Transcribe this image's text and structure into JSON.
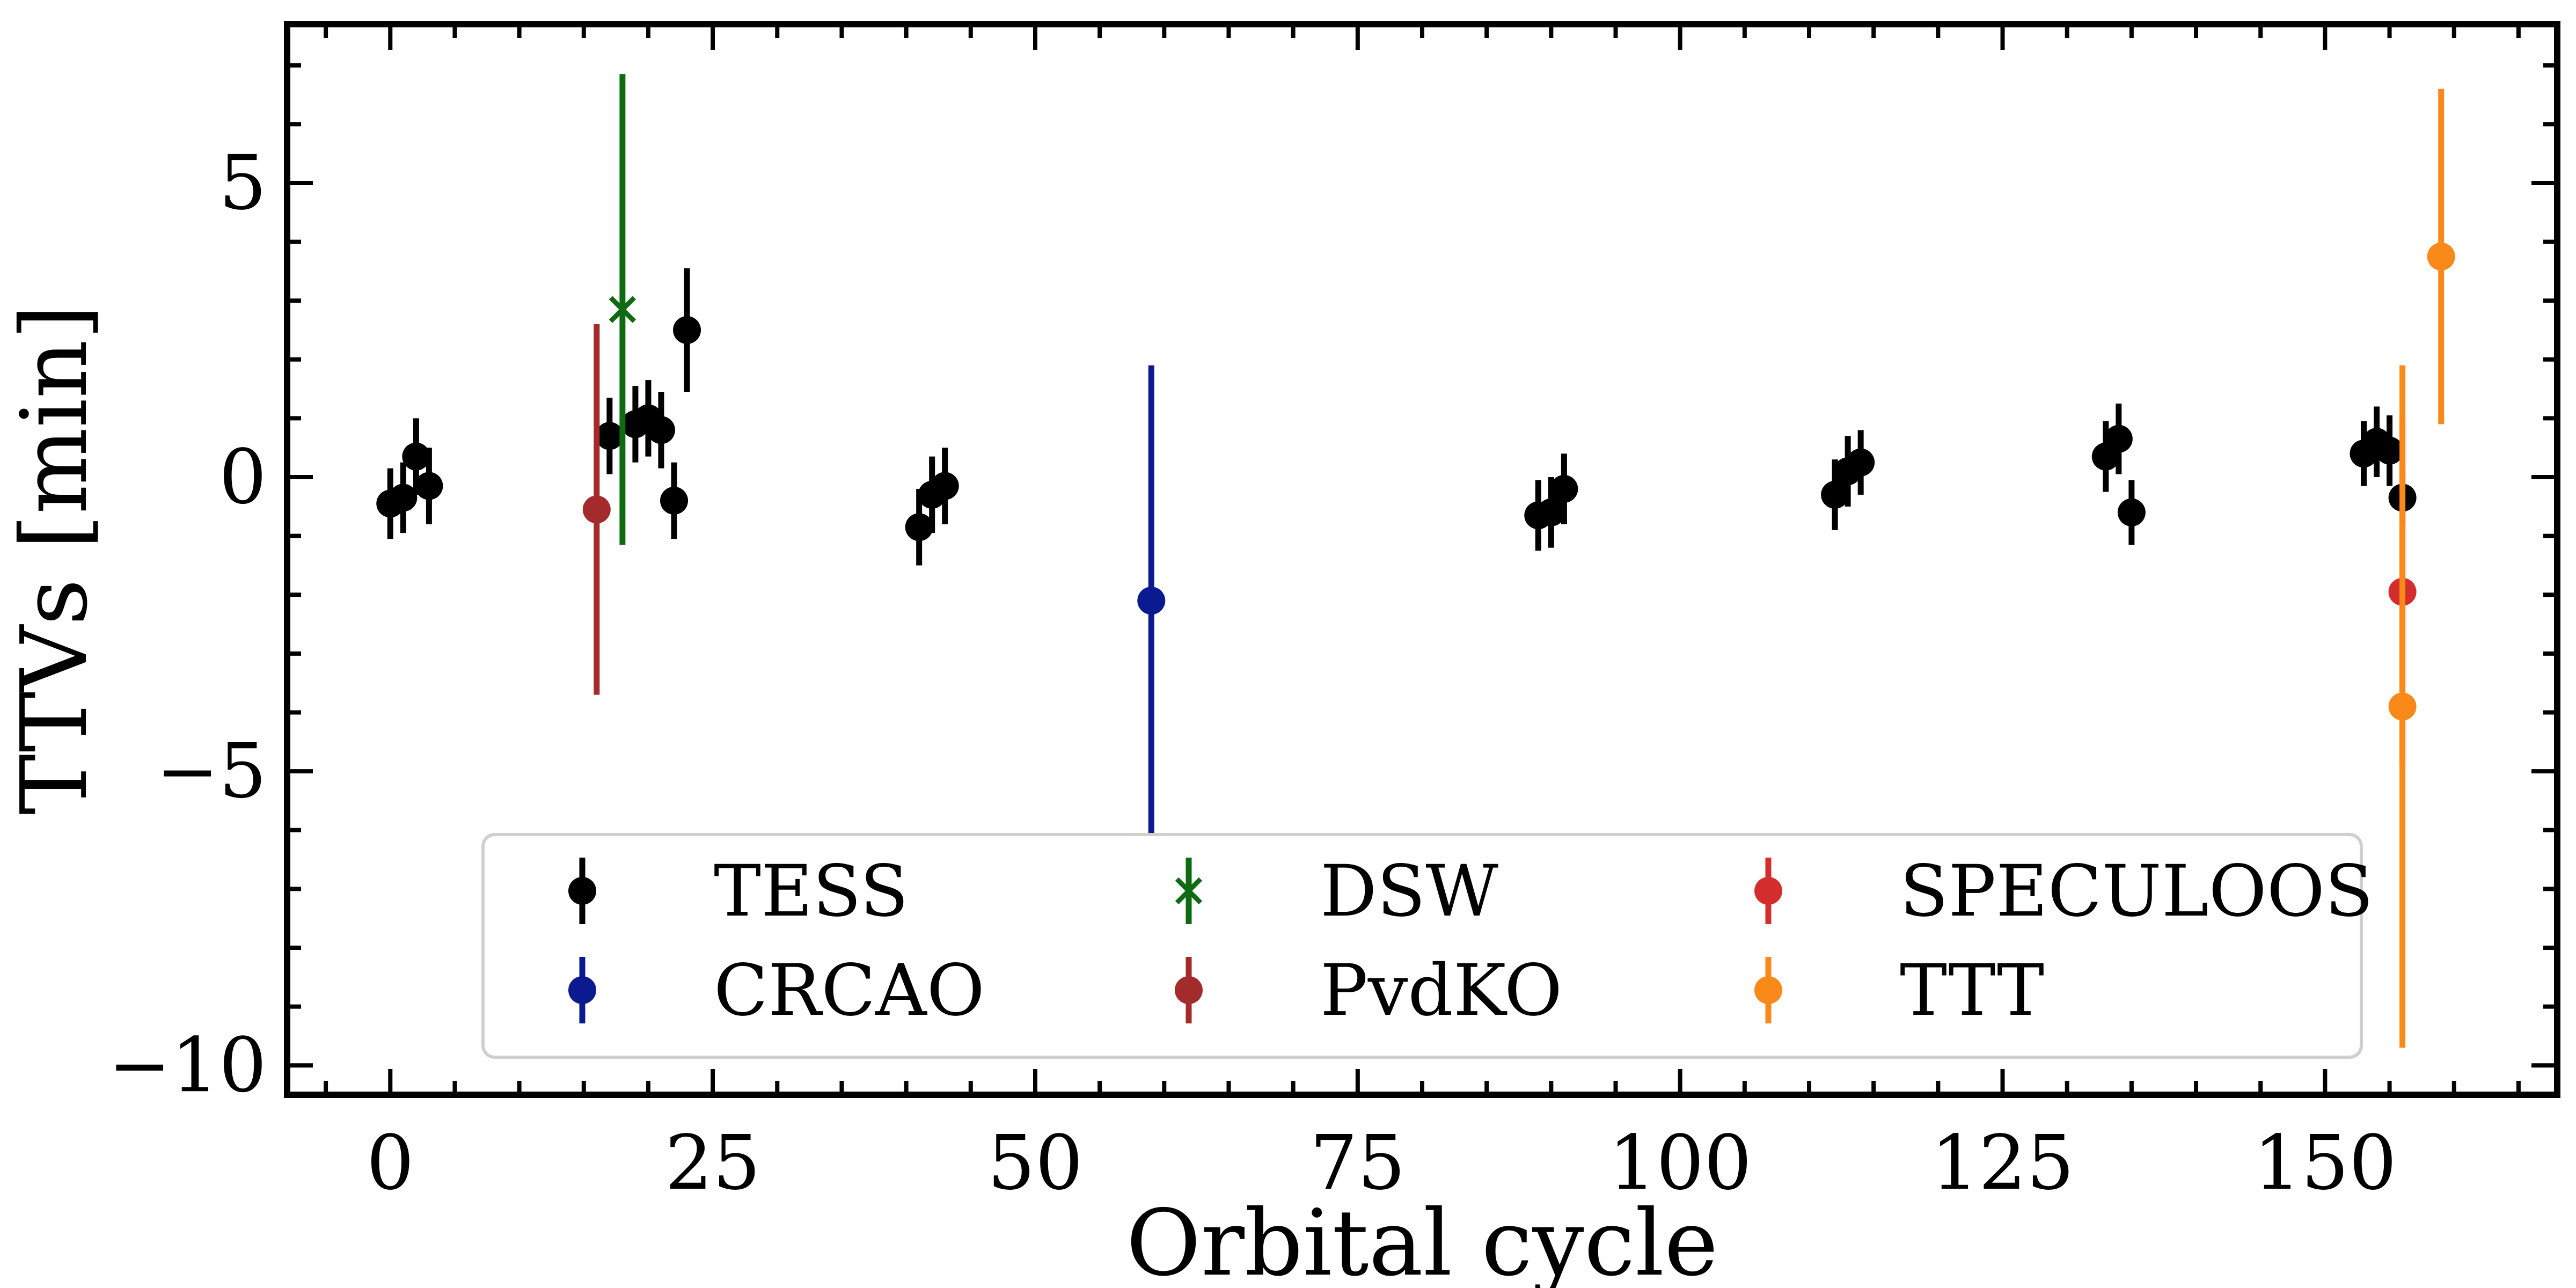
{
  "chart_data": {
    "type": "scatter",
    "title": "",
    "xlabel": "Orbital cycle",
    "ylabel": "TTVs [min]",
    "xlim": [
      -8,
      168
    ],
    "ylim": [
      -10.5,
      7.7
    ],
    "xticks": [
      0,
      25,
      50,
      75,
      100,
      125,
      150
    ],
    "yticks": [
      -10,
      -5,
      0,
      5
    ],
    "ytick_labels": [
      "−10",
      "−5",
      "0",
      "5"
    ],
    "grid": false,
    "legend_position": "bottom-center",
    "series": [
      {
        "name": "TESS",
        "color": "#000000",
        "marker": "o",
        "points": [
          {
            "x": 0,
            "y": -0.45,
            "err": 0.6
          },
          {
            "x": 1,
            "y": -0.35,
            "err": 0.6
          },
          {
            "x": 2,
            "y": 0.35,
            "err": 0.65
          },
          {
            "x": 3,
            "y": -0.15,
            "err": 0.65
          },
          {
            "x": 17,
            "y": 0.7,
            "err": 0.65
          },
          {
            "x": 19,
            "y": 0.9,
            "err": 0.65
          },
          {
            "x": 20,
            "y": 1.0,
            "err": 0.65
          },
          {
            "x": 21,
            "y": 0.8,
            "err": 0.65
          },
          {
            "x": 22,
            "y": -0.4,
            "err": 0.65
          },
          {
            "x": 23,
            "y": 2.5,
            "err": 1.05
          },
          {
            "x": 41,
            "y": -0.85,
            "err": 0.65
          },
          {
            "x": 42,
            "y": -0.3,
            "err": 0.65
          },
          {
            "x": 43,
            "y": -0.15,
            "err": 0.65
          },
          {
            "x": 89,
            "y": -0.65,
            "err": 0.6
          },
          {
            "x": 90,
            "y": -0.6,
            "err": 0.6
          },
          {
            "x": 91,
            "y": -0.2,
            "err": 0.6
          },
          {
            "x": 112,
            "y": -0.3,
            "err": 0.6
          },
          {
            "x": 113,
            "y": 0.1,
            "err": 0.6
          },
          {
            "x": 114,
            "y": 0.25,
            "err": 0.55
          },
          {
            "x": 133,
            "y": 0.35,
            "err": 0.6
          },
          {
            "x": 134,
            "y": 0.65,
            "err": 0.6
          },
          {
            "x": 135,
            "y": -0.6,
            "err": 0.55
          },
          {
            "x": 153,
            "y": 0.4,
            "err": 0.55
          },
          {
            "x": 154,
            "y": 0.6,
            "err": 0.6
          },
          {
            "x": 155,
            "y": 0.45,
            "err": 0.6
          },
          {
            "x": 156,
            "y": -0.35,
            "err": 0.45
          }
        ]
      },
      {
        "name": "CRCAO",
        "color": "#0c1a8f",
        "marker": "o",
        "points": [
          {
            "x": 59,
            "y": -2.1,
            "err": 4.0
          }
        ]
      },
      {
        "name": "DSW",
        "color": "#0f6b12",
        "marker": "x",
        "points": [
          {
            "x": 18,
            "y": 2.85,
            "err": 4.0
          }
        ]
      },
      {
        "name": "PvdKO",
        "color": "#a32b2b",
        "marker": "o",
        "points": [
          {
            "x": 16,
            "y": -0.55,
            "err": 3.15
          }
        ]
      },
      {
        "name": "SPECULOOS",
        "color": "#d42d2d",
        "marker": "o",
        "points": [
          {
            "x": 156,
            "y": -1.95,
            "err": 2.95
          }
        ]
      },
      {
        "name": "TTT",
        "color": "#f98a1a",
        "marker": "o",
        "points": [
          {
            "x": 156,
            "y": -3.9,
            "err": 5.8
          },
          {
            "x": 159,
            "y": 3.75,
            "err": 2.85
          }
        ]
      }
    ]
  }
}
